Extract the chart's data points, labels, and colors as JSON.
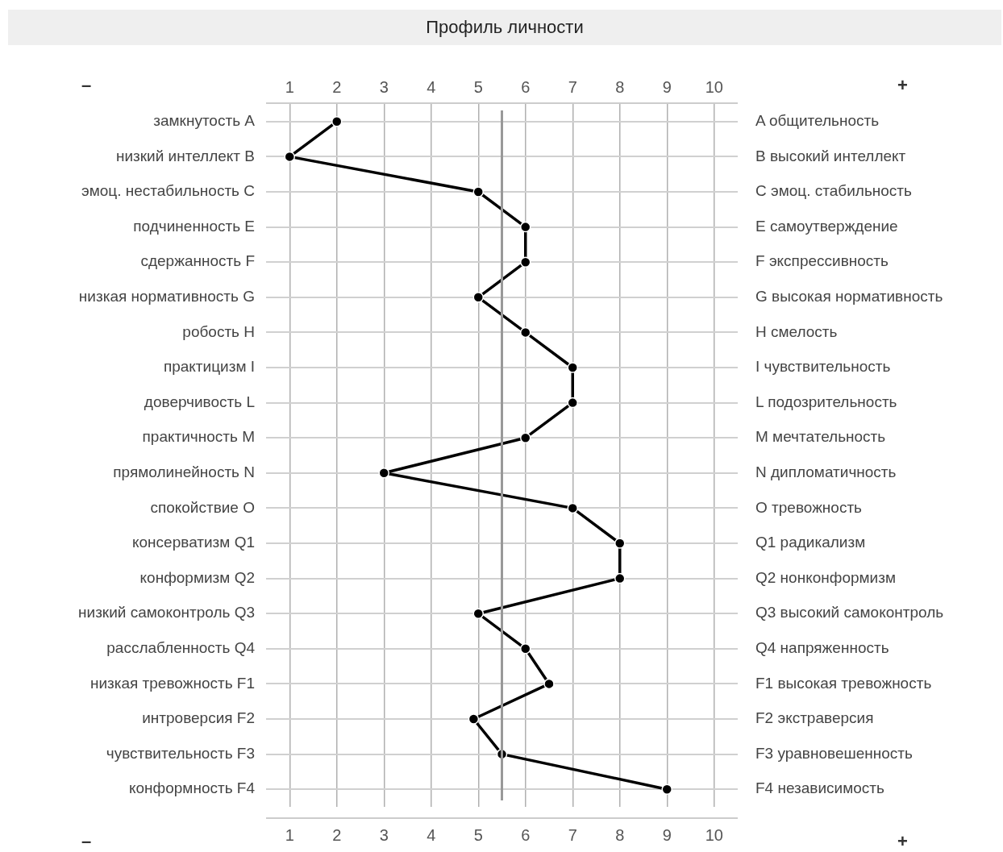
{
  "chart_data": {
    "type": "line",
    "title": "Профиль личности",
    "orientation": "horizontal",
    "categories": [
      "замкнутость A",
      "низкий интеллект B",
      "эмоц. нестабильность C",
      "подчиненность E",
      "сдержанность F",
      "низкая нормативность G",
      "робость H",
      "практицизм I",
      "доверчивость L",
      "практичность M",
      "прямолинейность N",
      "спокойствие O",
      "консерватизм Q1",
      "конформизм Q2",
      "низкий самоконтроль Q3",
      "расслабленность Q4",
      "низкая тревожность F1",
      "интроверсия F2",
      "чувствительность F3",
      "конформность F4"
    ],
    "y2_categories": [
      "A общительность",
      "B высокий интеллект",
      "C эмоц. стабильность",
      "E самоутверждение",
      "F экспрессивность",
      "G высокая нормативность",
      "H смелость",
      "I чувствительность",
      "L подозрительность",
      "M мечтательность",
      "N дипломатичность",
      "O тревожность",
      "Q1 радикализм",
      "Q2 нонконформизм",
      "Q3 высокий самоконтроль",
      "Q4 напряженность",
      "F1 высокая тревожность",
      "F2 экстраверсия",
      "F3 уравновешенность",
      "F4 независимость"
    ],
    "series": [
      {
        "color": "#000000",
        "values": [
          2,
          1,
          5,
          6,
          6,
          5,
          6,
          7,
          7,
          6,
          3,
          7,
          8,
          8,
          5,
          6,
          6.5,
          4.9,
          5.5,
          9
        ]
      }
    ],
    "xlim": [
      0.5,
      10.5
    ],
    "xticks": [
      1,
      2,
      3,
      4,
      5,
      6,
      7,
      8,
      9,
      10
    ],
    "x2lim": [
      0.5,
      10.5
    ],
    "x2ticks": [
      1,
      2,
      3,
      4,
      5,
      6,
      7,
      8,
      9,
      10
    ],
    "grid": true,
    "marker": "circle",
    "line_style": "solid",
    "ref_lines": [
      {
        "axis": "x",
        "value": 5.5,
        "color": "#999999"
      }
    ],
    "annotations": [
      "–",
      "+"
    ]
  }
}
